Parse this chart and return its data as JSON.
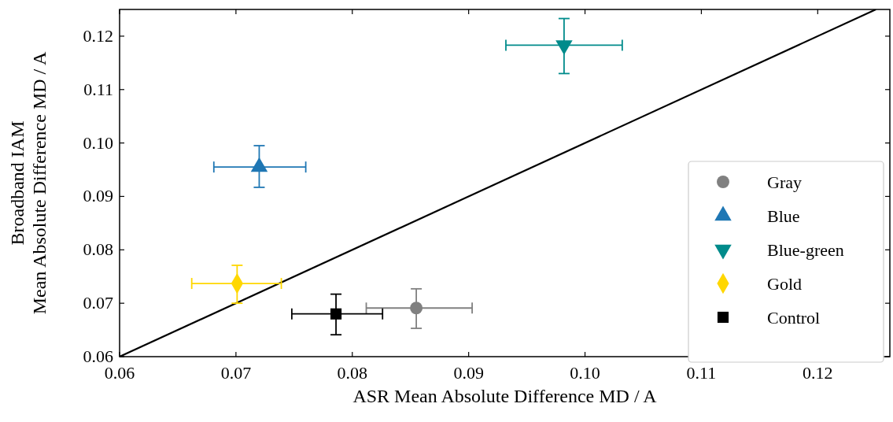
{
  "chart_data": {
    "type": "scatter",
    "xlabel": "ASR Mean Absolute Difference MD / A",
    "ylabel": "Broadband IAM\nMean Absolute Difference MD / A",
    "xlim": [
      0.06,
      0.1262
    ],
    "ylim": [
      0.06,
      0.125
    ],
    "xticks": [
      {
        "value": 0.06,
        "label": "0.06"
      },
      {
        "value": 0.07,
        "label": "0.07"
      },
      {
        "value": 0.08,
        "label": "0.08"
      },
      {
        "value": 0.09,
        "label": "0.09"
      },
      {
        "value": 0.1,
        "label": "0.10"
      },
      {
        "value": 0.11,
        "label": "0.11"
      },
      {
        "value": 0.12,
        "label": "0.12"
      }
    ],
    "yticks": [
      {
        "value": 0.06,
        "label": "0.06"
      },
      {
        "value": 0.07,
        "label": "0.07"
      },
      {
        "value": 0.08,
        "label": "0.08"
      },
      {
        "value": 0.09,
        "label": "0.09"
      },
      {
        "value": 0.1,
        "label": "0.10"
      },
      {
        "value": 0.11,
        "label": "0.11"
      },
      {
        "value": 0.12,
        "label": "0.12"
      }
    ],
    "grid": false,
    "legend": "right",
    "series": [
      {
        "type": "line",
        "color": "#000000",
        "x": [
          0.06,
          0.125
        ],
        "values": [
          0.06,
          0.125
        ],
        "marker": "none"
      },
      {
        "name": "Gray",
        "color": "#808080",
        "marker": "circle",
        "x": [
          0.0855
        ],
        "values": [
          0.0691
        ],
        "errors": [
          [
            0.0653,
            0.0727
          ]
        ],
        "xerrors": [
          [
            0.0812,
            0.0903
          ]
        ]
      },
      {
        "name": "Blue",
        "color": "#1f77b4",
        "marker": "triangle",
        "x": [
          0.072
        ],
        "values": [
          0.0955
        ],
        "errors": [
          [
            0.0917,
            0.0995
          ]
        ],
        "xerrors": [
          [
            0.0681,
            0.076
          ]
        ]
      },
      {
        "name": "Blue-green",
        "color": "#008b8b",
        "marker": "triangle-down",
        "x": [
          0.0982
        ],
        "values": [
          0.1183
        ],
        "errors": [
          [
            0.113,
            0.1233
          ]
        ],
        "xerrors": [
          [
            0.0932,
            0.1032
          ]
        ]
      },
      {
        "name": "Gold",
        "color": "#ffd700",
        "marker": "diamond",
        "x": [
          0.0701
        ],
        "values": [
          0.0737
        ],
        "errors": [
          [
            0.07,
            0.0771
          ]
        ],
        "xerrors": [
          [
            0.0662,
            0.0739
          ]
        ]
      },
      {
        "name": "Control",
        "color": "#000000",
        "marker": "square",
        "x": [
          0.0786
        ],
        "values": [
          0.068
        ],
        "errors": [
          [
            0.0641,
            0.0717
          ]
        ],
        "xerrors": [
          [
            0.0748,
            0.0826
          ]
        ]
      }
    ]
  }
}
